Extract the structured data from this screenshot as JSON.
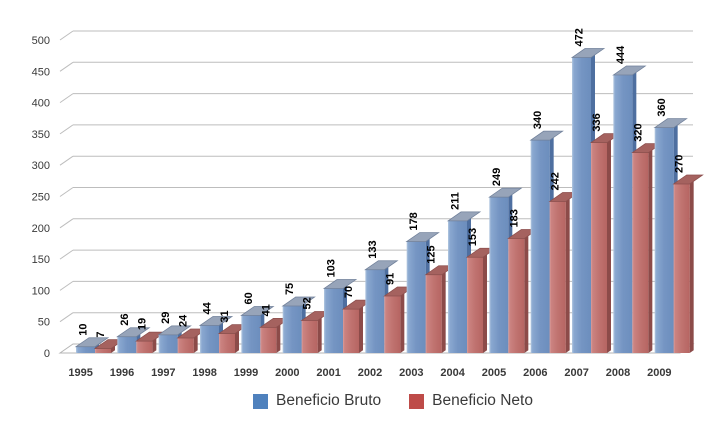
{
  "chart_data": {
    "type": "bar",
    "style": "3d-clustered",
    "title": "",
    "xlabel": "",
    "ylabel": "",
    "categories": [
      "1995",
      "1996",
      "1997",
      "1998",
      "1999",
      "2000",
      "2001",
      "2002",
      "2003",
      "2004",
      "2005",
      "2006",
      "2007",
      "2008",
      "2009"
    ],
    "series": [
      {
        "name": "Beneficio Bruto",
        "color": "#4F81BD",
        "values": [
          10,
          26,
          29,
          44,
          60,
          75,
          103,
          133,
          178,
          211,
          249,
          340,
          472,
          444,
          360
        ]
      },
      {
        "name": "Beneficio Neto",
        "color": "#BE4B48",
        "values": [
          7,
          19,
          24,
          31,
          41,
          52,
          70,
          91,
          125,
          153,
          183,
          242,
          336,
          320,
          270
        ]
      }
    ],
    "ylim": [
      0,
      500
    ],
    "ytick_step": 50,
    "yticks": [
      0,
      50,
      100,
      150,
      200,
      250,
      300,
      350,
      400,
      450,
      500
    ],
    "grid": true,
    "gridline_color": "#bdbdbd",
    "data_labels": "rotated-90-above-bars",
    "legend_position": "bottom"
  },
  "legend": {
    "items": [
      {
        "label": "Beneficio Bruto",
        "color": "#4F81BD"
      },
      {
        "label": "Beneficio Neto",
        "color": "#BE4B48"
      }
    ]
  }
}
